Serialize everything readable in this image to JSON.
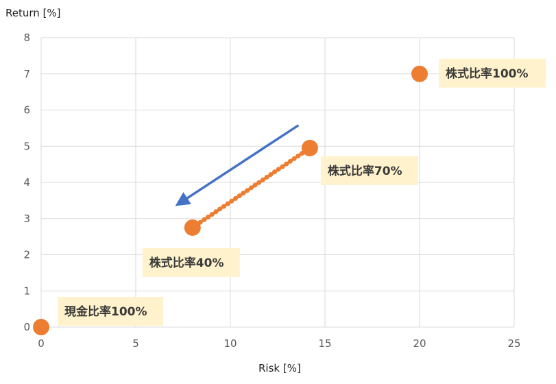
{
  "chart_data": {
    "type": "scatter",
    "title": "",
    "xlabel": "Risk [%]",
    "ylabel": "Return [%]",
    "xlim": [
      0,
      25
    ],
    "ylim": [
      0,
      8
    ],
    "x_ticks": [
      0,
      5,
      10,
      15,
      20,
      25
    ],
    "y_ticks": [
      0,
      1,
      2,
      3,
      4,
      5,
      6,
      7,
      8
    ],
    "grid": true,
    "points": [
      {
        "x": 0,
        "y": 0,
        "label": "現金比率100%"
      },
      {
        "x": 8.0,
        "y": 2.75,
        "label": "株式比率40%"
      },
      {
        "x": 14.2,
        "y": 4.95,
        "label": "株式比率70%"
      },
      {
        "x": 20,
        "y": 7.0,
        "label": "株式比率100%"
      }
    ],
    "line_series": {
      "from": {
        "x": 8.0,
        "y": 2.75
      },
      "to": {
        "x": 14.2,
        "y": 4.95
      },
      "count": 31
    },
    "arrow": {
      "from": {
        "x": 13.6,
        "y": 5.58
      },
      "to": {
        "x": 7.3,
        "y": 3.42
      }
    },
    "colors": {
      "marker": "#ED7D31",
      "arrow": "#4472C4",
      "grid": "#D9D9D9",
      "callout_bg": "#FFF2CC"
    }
  }
}
